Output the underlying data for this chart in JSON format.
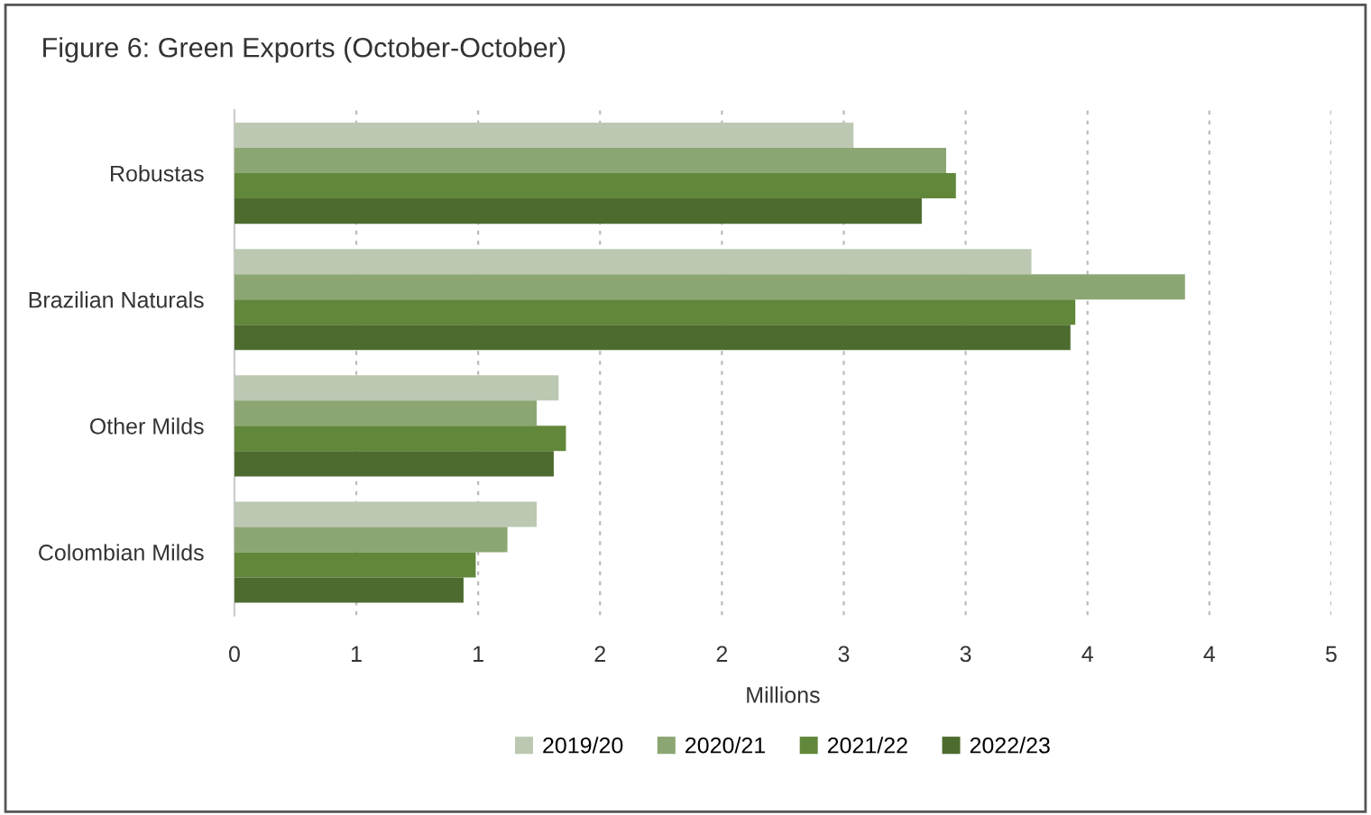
{
  "chart_data": {
    "type": "bar",
    "orientation": "horizontal",
    "title": "Figure 6: Green Exports (October-October)",
    "xlabel": "Millions",
    "categories": [
      "Robustas",
      "Brazilian Naturals",
      "Other Milds",
      "Colombian Milds"
    ],
    "series": [
      {
        "name": "2019/20",
        "color": "#bcc8b2",
        "values": [
          2.54,
          3.27,
          1.33,
          1.24
        ]
      },
      {
        "name": "2020/21",
        "color": "#8ba672",
        "values": [
          2.92,
          3.9,
          1.24,
          1.12
        ]
      },
      {
        "name": "2021/22",
        "color": "#61873a",
        "values": [
          2.96,
          3.45,
          1.36,
          0.99
        ]
      },
      {
        "name": "2022/23",
        "color": "#4e6b2f",
        "values": [
          2.82,
          3.43,
          1.31,
          0.94
        ]
      }
    ],
    "xlim": [
      0,
      4.5
    ],
    "xticks": [
      0,
      {
        "value": 0.5,
        "label": "1"
      },
      1,
      {
        "value": 1.5,
        "label": "2"
      },
      2,
      {
        "value": 2.5,
        "label": "3"
      },
      3,
      {
        "value": 3.5,
        "label": "4"
      },
      4,
      {
        "value": 4.5,
        "label": "5"
      }
    ],
    "grid": "x",
    "legend": "bottom"
  }
}
